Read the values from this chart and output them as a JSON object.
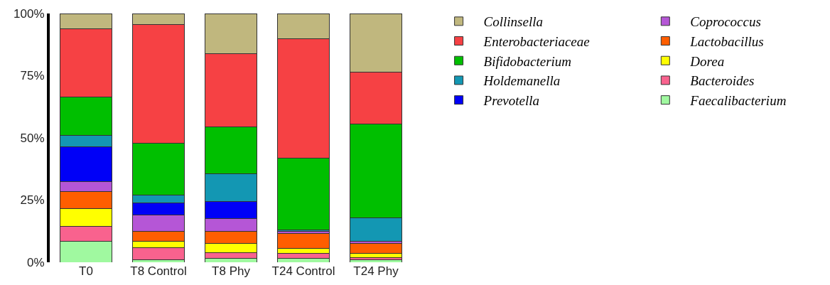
{
  "chart_data": {
    "type": "bar",
    "stacked": true,
    "categories": [
      "T0",
      "T8 Control",
      "T8 Phy",
      "T24 Control",
      "T24 Phy"
    ],
    "series": [
      {
        "name": "Faecalibacterium",
        "color": "#a0f9a0",
        "values": [
          8.5,
          1,
          1.5,
          1.5,
          1
        ]
      },
      {
        "name": "Bacteroides",
        "color": "#f9628e",
        "values": [
          6,
          5,
          2.5,
          2,
          1
        ]
      },
      {
        "name": "Dorea",
        "color": "#ffff00",
        "values": [
          7,
          2.5,
          3.5,
          2,
          1.5
        ]
      },
      {
        "name": "Lactobacillus",
        "color": "#ff5e00",
        "values": [
          7,
          4,
          5,
          6,
          4
        ]
      },
      {
        "name": "Coprococcus",
        "color": "#b556d6",
        "values": [
          4,
          6.5,
          5,
          1,
          1
        ]
      },
      {
        "name": "Prevotella",
        "color": "#0000f7",
        "values": [
          14,
          5,
          7,
          0,
          0
        ]
      },
      {
        "name": "Holdemanella",
        "color": "#1397b3",
        "values": [
          4.5,
          3,
          11,
          0.5,
          9.5
        ]
      },
      {
        "name": "Bifidobacterium",
        "color": "#00bf00",
        "values": [
          15.5,
          21,
          19,
          29,
          37.5
        ]
      },
      {
        "name": "Enterobacteriaceae",
        "color": "#f64144",
        "values": [
          27.5,
          47.5,
          29.5,
          48,
          21
        ]
      },
      {
        "name": "Collinsella",
        "color": "#c0b77e",
        "values": [
          6,
          4.5,
          16,
          10,
          23.5
        ]
      }
    ],
    "ylim": [
      0,
      100
    ],
    "yticks": [
      {
        "value": 0,
        "label": "0%"
      },
      {
        "value": 25,
        "label": "25%"
      },
      {
        "value": 50,
        "label": "50%"
      },
      {
        "value": 75,
        "label": "75%"
      },
      {
        "value": 100,
        "label": "100%"
      }
    ],
    "grid": false,
    "legend": "right"
  }
}
